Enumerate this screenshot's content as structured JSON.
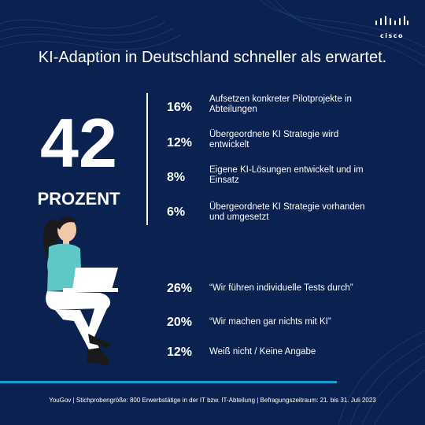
{
  "brand": {
    "logo_text": "cisco"
  },
  "headline": "KI-Adaption in Deutschland schneller als erwartet.",
  "highlight": {
    "number": "42",
    "unit": "PROZENT"
  },
  "chart_data": {
    "type": "table",
    "groups": [
      {
        "rows": [
          {
            "percent": 16,
            "label": "16%",
            "text": "Aufsetzen konkreter Pilotprojekte in Abteilungen"
          },
          {
            "percent": 12,
            "label": "12%",
            "text": "Übergeordnete KI Strategie wird entwickelt"
          },
          {
            "percent": 8,
            "label": "8%",
            "text": "Eigene KI-Lösungen entwickelt und im Einsatz"
          },
          {
            "percent": 6,
            "label": "6%",
            "text": "Übergeordnete KI Strategie vorhanden und umgesetzt"
          }
        ]
      },
      {
        "rows": [
          {
            "percent": 26,
            "label": "26%",
            "text": "“Wir führen individuelle Tests durch”"
          },
          {
            "percent": 20,
            "label": "20%",
            "text": "“Wir machen gar nichts mit KI”"
          },
          {
            "percent": 12,
            "label": "12%",
            "text": "Weiß nicht / Keine Angabe"
          }
        ]
      }
    ]
  },
  "footer": "YouGov | Stichprobengröße: 800 Erwerbstätige in der IT bzw. IT-Abteilung | Befragungszeitraum: 21. bis 31. Juli 2023",
  "colors": {
    "background": "#0b2150",
    "accent_line": "#14a0d9",
    "shirt": "#5ec8c8",
    "hair": "#1a1a1a"
  },
  "illustration": {
    "name": "woman-with-laptop-illustration"
  }
}
